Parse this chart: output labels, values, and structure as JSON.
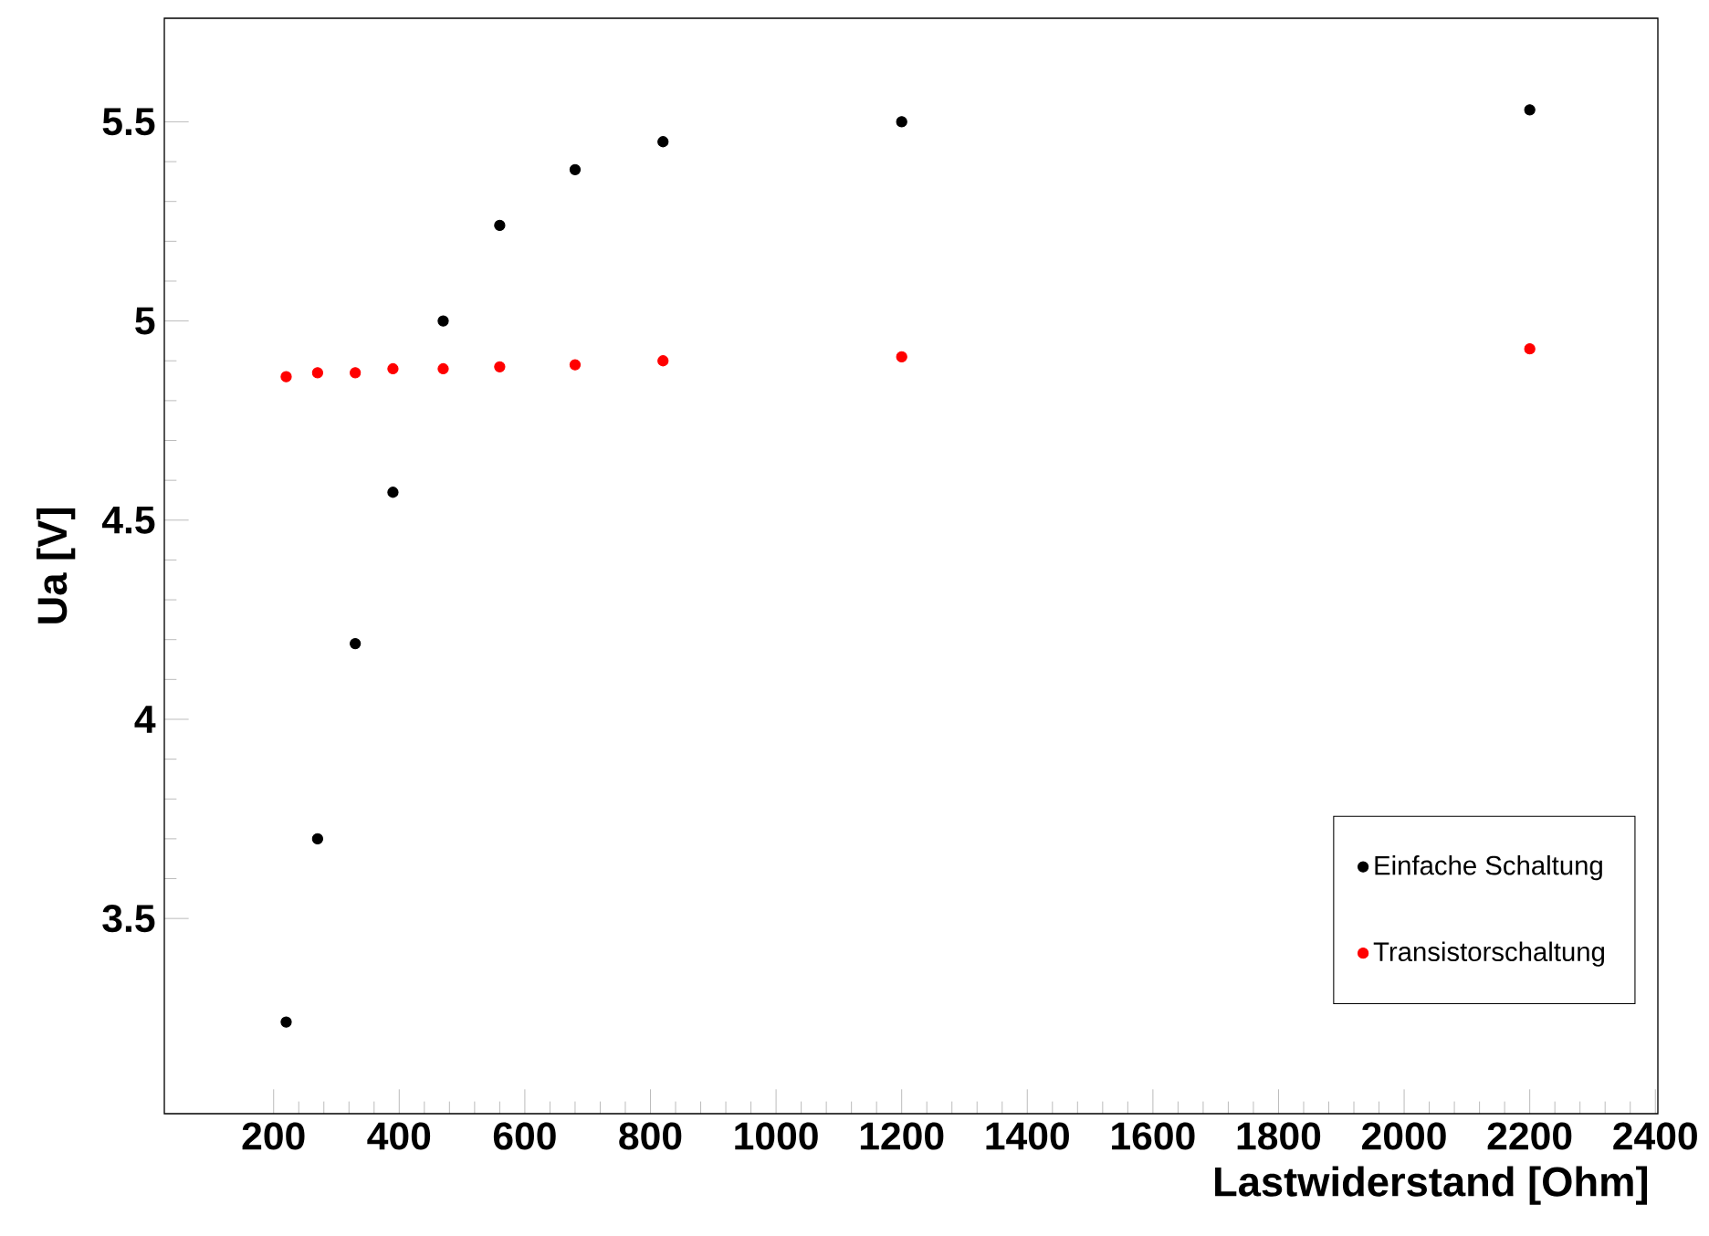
{
  "chart_data": {
    "type": "scatter",
    "xlabel": "Lastwiderstand [Ohm]",
    "ylabel": "Ua [V]",
    "x": [
      220,
      270,
      330,
      390,
      470,
      560,
      680,
      820,
      1200,
      2200
    ],
    "series": [
      {
        "name": "Einfache Schaltung",
        "color": "#000000",
        "values": [
          3.24,
          3.7,
          4.19,
          4.57,
          5.0,
          5.24,
          5.38,
          5.45,
          5.5,
          5.53
        ]
      },
      {
        "name": "Transistorschaltung",
        "color": "#ff0000",
        "values": [
          4.86,
          4.87,
          4.87,
          4.88,
          4.88,
          4.885,
          4.89,
          4.9,
          4.91,
          4.93
        ]
      }
    ],
    "xlim": [
      26,
      2404
    ],
    "ylim": [
      3.01,
      5.76
    ],
    "xticks": [
      200,
      400,
      600,
      800,
      1000,
      1200,
      1400,
      1600,
      1800,
      2000,
      2200,
      2400
    ],
    "yticks": [
      3.5,
      4,
      4.5,
      5,
      5.5
    ],
    "grid": false,
    "legend": "bottom right",
    "marker": "circle"
  }
}
